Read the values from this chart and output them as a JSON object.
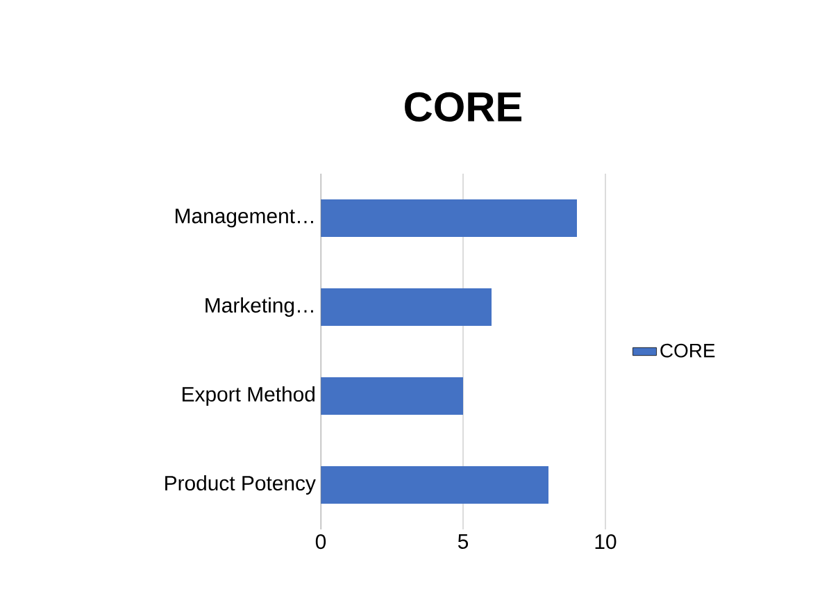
{
  "chart_data": {
    "type": "bar",
    "orientation": "horizontal",
    "title": "CORE",
    "categories": [
      "Management…",
      "Marketing…",
      "Export Method",
      "Product Potency"
    ],
    "series": [
      {
        "name": "CORE",
        "color": "#4472c4",
        "values": [
          9,
          6,
          5,
          8
        ]
      }
    ],
    "xlim": [
      0,
      10
    ],
    "xticks": [
      0,
      5,
      10
    ],
    "grid": "x",
    "legend": "right"
  }
}
